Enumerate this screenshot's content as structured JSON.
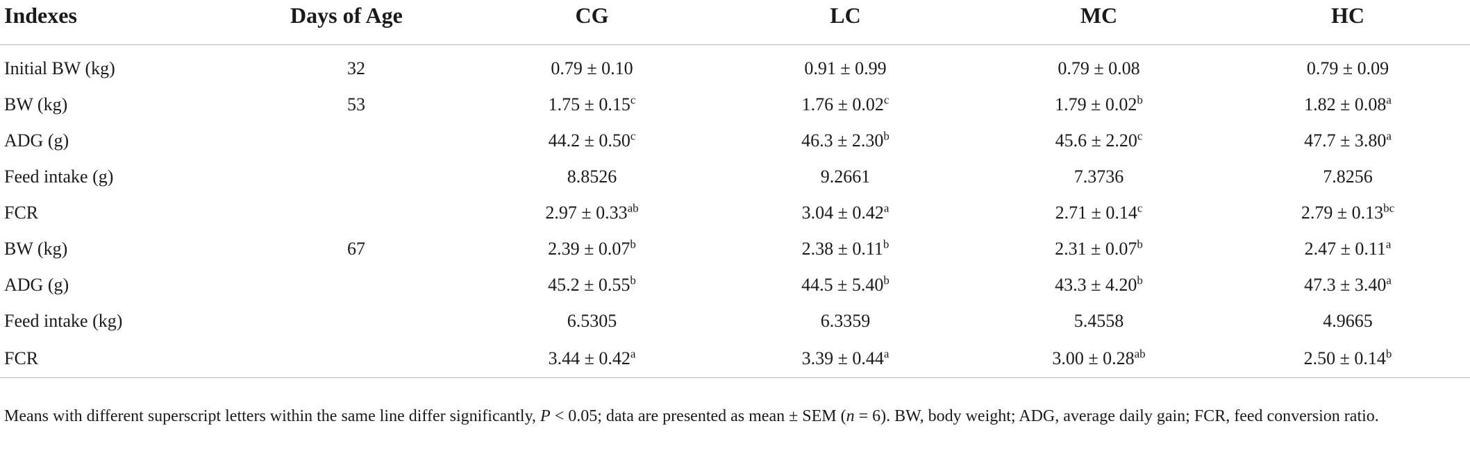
{
  "table": {
    "headers": [
      "Indexes",
      "Days of Age",
      "CG",
      "LC",
      "MC",
      "HC"
    ],
    "rows": [
      {
        "index": "Initial BW (kg)",
        "days": "32",
        "cg": {
          "v": "0.79 ± 0.10",
          "s": ""
        },
        "lc": {
          "v": "0.91 ± 0.99",
          "s": ""
        },
        "mc": {
          "v": "0.79 ± 0.08",
          "s": ""
        },
        "hc": {
          "v": "0.79 ± 0.09",
          "s": ""
        }
      },
      {
        "index": "BW (kg)",
        "days": "53",
        "cg": {
          "v": "1.75 ± 0.15",
          "s": "c"
        },
        "lc": {
          "v": "1.76 ± 0.02",
          "s": "c"
        },
        "mc": {
          "v": "1.79 ± 0.02",
          "s": "b"
        },
        "hc": {
          "v": "1.82 ± 0.08",
          "s": "a"
        }
      },
      {
        "index": "ADG (g)",
        "days": "",
        "cg": {
          "v": "44.2 ± 0.50",
          "s": "c"
        },
        "lc": {
          "v": "46.3 ± 2.30",
          "s": "b"
        },
        "mc": {
          "v": "45.6 ± 2.20",
          "s": "c"
        },
        "hc": {
          "v": "47.7 ± 3.80",
          "s": "a"
        }
      },
      {
        "index": "Feed intake (g)",
        "days": "",
        "cg": {
          "v": "8.8526",
          "s": ""
        },
        "lc": {
          "v": "9.2661",
          "s": ""
        },
        "mc": {
          "v": "7.3736",
          "s": ""
        },
        "hc": {
          "v": "7.8256",
          "s": ""
        }
      },
      {
        "index": "FCR",
        "days": "",
        "cg": {
          "v": "2.97 ± 0.33",
          "s": "ab"
        },
        "lc": {
          "v": "3.04 ± 0.42",
          "s": "a"
        },
        "mc": {
          "v": "2.71 ± 0.14",
          "s": "c"
        },
        "hc": {
          "v": "2.79 ± 0.13",
          "s": "bc"
        }
      },
      {
        "index": "BW (kg)",
        "days": "67",
        "cg": {
          "v": "2.39 ± 0.07",
          "s": "b"
        },
        "lc": {
          "v": "2.38 ± 0.11",
          "s": "b"
        },
        "mc": {
          "v": "2.31 ± 0.07",
          "s": "b"
        },
        "hc": {
          "v": "2.47 ± 0.11",
          "s": "a"
        }
      },
      {
        "index": "ADG (g)",
        "days": "",
        "cg": {
          "v": "45.2 ± 0.55",
          "s": "b"
        },
        "lc": {
          "v": "44.5 ± 5.40",
          "s": "b"
        },
        "mc": {
          "v": "43.3 ± 4.20",
          "s": "b"
        },
        "hc": {
          "v": "47.3 ± 3.40",
          "s": "a"
        }
      },
      {
        "index": "Feed intake (kg)",
        "days": "",
        "cg": {
          "v": "6.5305",
          "s": ""
        },
        "lc": {
          "v": "6.3359",
          "s": ""
        },
        "mc": {
          "v": "5.4558",
          "s": ""
        },
        "hc": {
          "v": "4.9665",
          "s": ""
        }
      },
      {
        "index": "FCR",
        "days": "",
        "cg": {
          "v": "3.44 ± 0.42",
          "s": "a"
        },
        "lc": {
          "v": "3.39 ± 0.44",
          "s": "a"
        },
        "mc": {
          "v": "3.00 ± 0.28",
          "s": "ab"
        },
        "hc": {
          "v": "2.50 ± 0.14",
          "s": "b"
        }
      }
    ]
  },
  "footnote": {
    "part1": "Means with different superscript letters within the same line differ significantly, ",
    "p_symbol": "P",
    "part2": " < 0.05; data are presented as mean ± SEM (",
    "n_symbol": "n",
    "part3": " = 6). BW, body weight; ADG, average daily gain; FCR, feed conversion ratio."
  }
}
